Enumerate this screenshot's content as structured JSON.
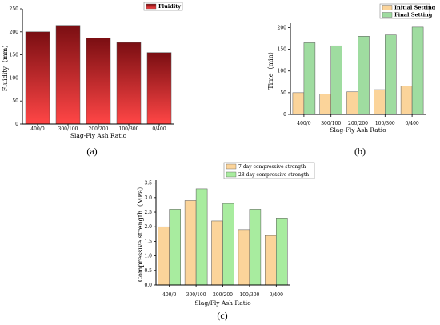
{
  "colors": {
    "fluidity_top": "#7a0e12",
    "fluidity_bottom": "#ff4646",
    "initial_setting": "#fbd49a",
    "final_setting": "#9fdca0",
    "day7": "#fbd49a",
    "day28": "#a8ec9f",
    "bar_stroke": "#555555"
  },
  "chart_data": [
    {
      "panel": "(a)",
      "type": "bar",
      "categories": [
        "400/0",
        "300/100",
        "200/200",
        "100/300",
        "0/400"
      ],
      "series": [
        {
          "name": "Fluidity",
          "values": [
            200,
            214,
            187,
            177,
            155
          ]
        }
      ],
      "xlabel": "Slag-Fly Ash Ratio",
      "ylabel": "Fluidity（mm）",
      "ylim": [
        0,
        250
      ],
      "yticks": [
        "0",
        "50",
        "100",
        "150",
        "200",
        "250"
      ],
      "legend": "top-right",
      "grid": false
    },
    {
      "panel": "(b)",
      "type": "bar",
      "categories": [
        "400/0",
        "300/100",
        "200/200",
        "100/300",
        "0/400"
      ],
      "series": [
        {
          "name": "Initial Setting",
          "values": [
            50,
            47,
            52,
            57,
            65
          ]
        },
        {
          "name": "Final Setting",
          "values": [
            165,
            158,
            180,
            183,
            201
          ]
        }
      ],
      "xlabel": "Slag-Fly Ash Ratio",
      "ylabel": "Time（min）",
      "ylim": [
        0,
        210
      ],
      "yticks": [
        "0",
        "50",
        "100",
        "150",
        "200"
      ],
      "legend": "top-right",
      "grid": false
    },
    {
      "panel": "(c)",
      "type": "bar",
      "categories": [
        "400/0",
        "300/100",
        "200/200",
        "100/300",
        "0/400"
      ],
      "series": [
        {
          "name": "7-day compressive strength",
          "values": [
            2.0,
            2.9,
            2.2,
            1.9,
            1.7
          ]
        },
        {
          "name": "28-day compressive strength",
          "values": [
            2.6,
            3.3,
            2.8,
            2.6,
            2.3
          ]
        }
      ],
      "xlabel": "Slag/Fly Ash Ratio",
      "ylabel": "Compressive strength（MPa）",
      "ylim": [
        0,
        3.6
      ],
      "yticks": [
        "0.0",
        "0.5",
        "1.0",
        "1.5",
        "2.0",
        "2.5",
        "3.0",
        "3.5"
      ],
      "legend": "top",
      "grid": false
    }
  ]
}
